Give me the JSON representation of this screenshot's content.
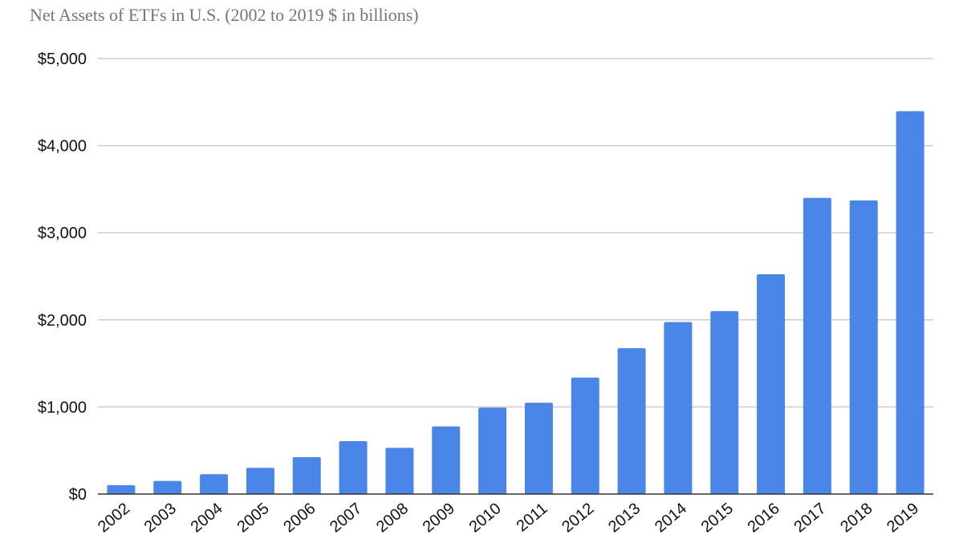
{
  "chart_data": {
    "type": "bar",
    "title": "Net Assets of ETFs in U.S. (2002 to 2019 $ in billions)",
    "xlabel": "",
    "ylabel": "",
    "categories": [
      "2002",
      "2003",
      "2004",
      "2005",
      "2006",
      "2007",
      "2008",
      "2009",
      "2010",
      "2011",
      "2012",
      "2013",
      "2014",
      "2015",
      "2016",
      "2017",
      "2018",
      "2019"
    ],
    "values": [
      102,
      151,
      228,
      301,
      423,
      608,
      531,
      777,
      992,
      1048,
      1337,
      1675,
      1975,
      2101,
      2524,
      3400,
      3371,
      4396
    ],
    "ylim": [
      0,
      5000
    ],
    "yticks": [
      0,
      1000,
      2000,
      3000,
      4000,
      5000
    ],
    "ytick_labels": [
      "$0",
      "$1,000",
      "$2,000",
      "$3,000",
      "$4,000",
      "$5,000"
    ],
    "grid": true,
    "legend": "none",
    "colors": {
      "bar": "#4a86e8",
      "grid": "#cccccc",
      "axis": "#333333"
    }
  }
}
